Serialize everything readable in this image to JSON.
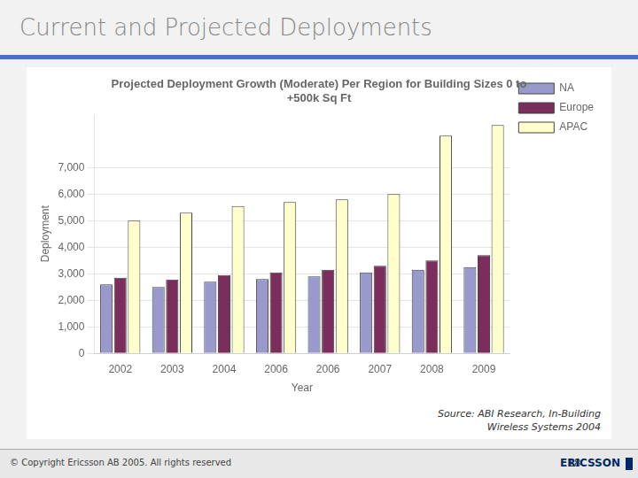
{
  "chart_data": {
    "type": "bar",
    "title": "Projected Deployment Growth (Moderate) Per Region for Building Sizes 0 to\n+500k Sq Ft",
    "x_label": "Year",
    "y_label": "Deployment",
    "categories": [
      "2002",
      "2003",
      "2004",
      "2006",
      "2006",
      "2007",
      "2008",
      "2009"
    ],
    "series": [
      {
        "name": "NA",
        "color": "#9999cc",
        "values": [
          2600,
          2500,
          2700,
          2800,
          2900,
          3050,
          3150,
          3250
        ]
      },
      {
        "name": "Europe",
        "color": "#7b2d5c",
        "values": [
          2850,
          2780,
          2950,
          3050,
          3150,
          3300,
          3500,
          3700
        ]
      },
      {
        "name": "APAC",
        "color": "#ffffcc",
        "values": [
          5000,
          5300,
          5550,
          5700,
          5800,
          6000,
          8200,
          8600
        ]
      }
    ],
    "ylim": [
      0,
      9000
    ],
    "yticks": [
      0,
      {
        "value": 1000,
        "label": "1,000"
      },
      {
        "value": 2000,
        "label": "2,000"
      },
      {
        "value": 3000,
        "label": "3,000"
      },
      {
        "value": 4000,
        "label": "4,000"
      },
      {
        "value": 5000,
        "label": "5,000"
      },
      {
        "value": 6000,
        "label": "6,000"
      },
      {
        "value": 7000,
        "label": "7,000"
      }
    ],
    "grid": true,
    "legend": "right",
    "annotations": [
      "Current and Projected Deployments",
      "Source: ABI Research, In-Building\nWireless Systems 2004",
      "© Copyright Ericsson AB 2005. All rights reserved",
      "18",
      "ERICSSON"
    ]
  }
}
